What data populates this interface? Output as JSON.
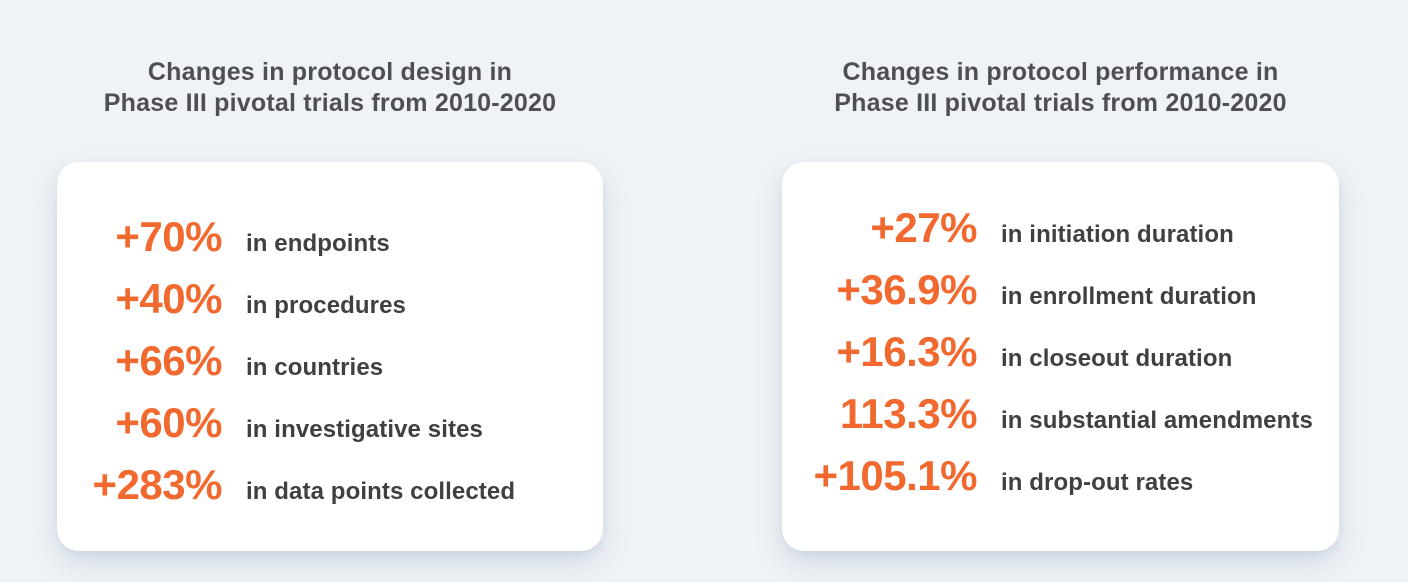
{
  "colors": {
    "background": "#eff3f7",
    "card_background": "#ffffff",
    "accent_orange": "#f1692f",
    "title_gray": "#4e4f51",
    "label_gray": "#3f4043"
  },
  "cards": [
    {
      "title_lines": [
        "Changes in protocol design in",
        "Phase III pivotal trials from 2010-2020"
      ],
      "stats": [
        {
          "value": "+70%",
          "label": "in endpoints"
        },
        {
          "value": "+40%",
          "label": "in procedures"
        },
        {
          "value": "+66%",
          "label": "in countries"
        },
        {
          "value": "+60%",
          "label": "in investigative sites"
        },
        {
          "value": "+283%",
          "label": "in data points collected"
        }
      ]
    },
    {
      "title_lines": [
        "Changes in protocol performance in",
        "Phase III pivotal trials from 2010-2020"
      ],
      "stats": [
        {
          "value": "+27%",
          "label": "in initiation duration"
        },
        {
          "value": "+36.9%",
          "label": "in enrollment duration"
        },
        {
          "value": "+16.3%",
          "label": "in closeout duration"
        },
        {
          "value": "113.3%",
          "label": "in substantial amendments"
        },
        {
          "value": "+105.1%",
          "label": "in drop-out rates"
        }
      ]
    }
  ],
  "chart_data": [
    {
      "type": "table",
      "title": "Changes in protocol design in Phase III pivotal trials from 2010-2020",
      "categories": [
        "endpoints",
        "procedures",
        "countries",
        "investigative sites",
        "data points collected"
      ],
      "values": [
        70,
        40,
        66,
        60,
        283
      ],
      "unit": "percent change",
      "value_labels": [
        "+70%",
        "+40%",
        "+66%",
        "+60%",
        "+283%"
      ]
    },
    {
      "type": "table",
      "title": "Changes in protocol performance in Phase III pivotal trials from 2010-2020",
      "categories": [
        "initiation duration",
        "enrollment duration",
        "closeout duration",
        "substantial amendments",
        "drop-out rates"
      ],
      "values": [
        27,
        36.9,
        16.3,
        113.3,
        105.1
      ],
      "unit": "percent change",
      "value_labels": [
        "+27%",
        "+36.9%",
        "+16.3%",
        "113.3%",
        "+105.1%"
      ]
    }
  ]
}
